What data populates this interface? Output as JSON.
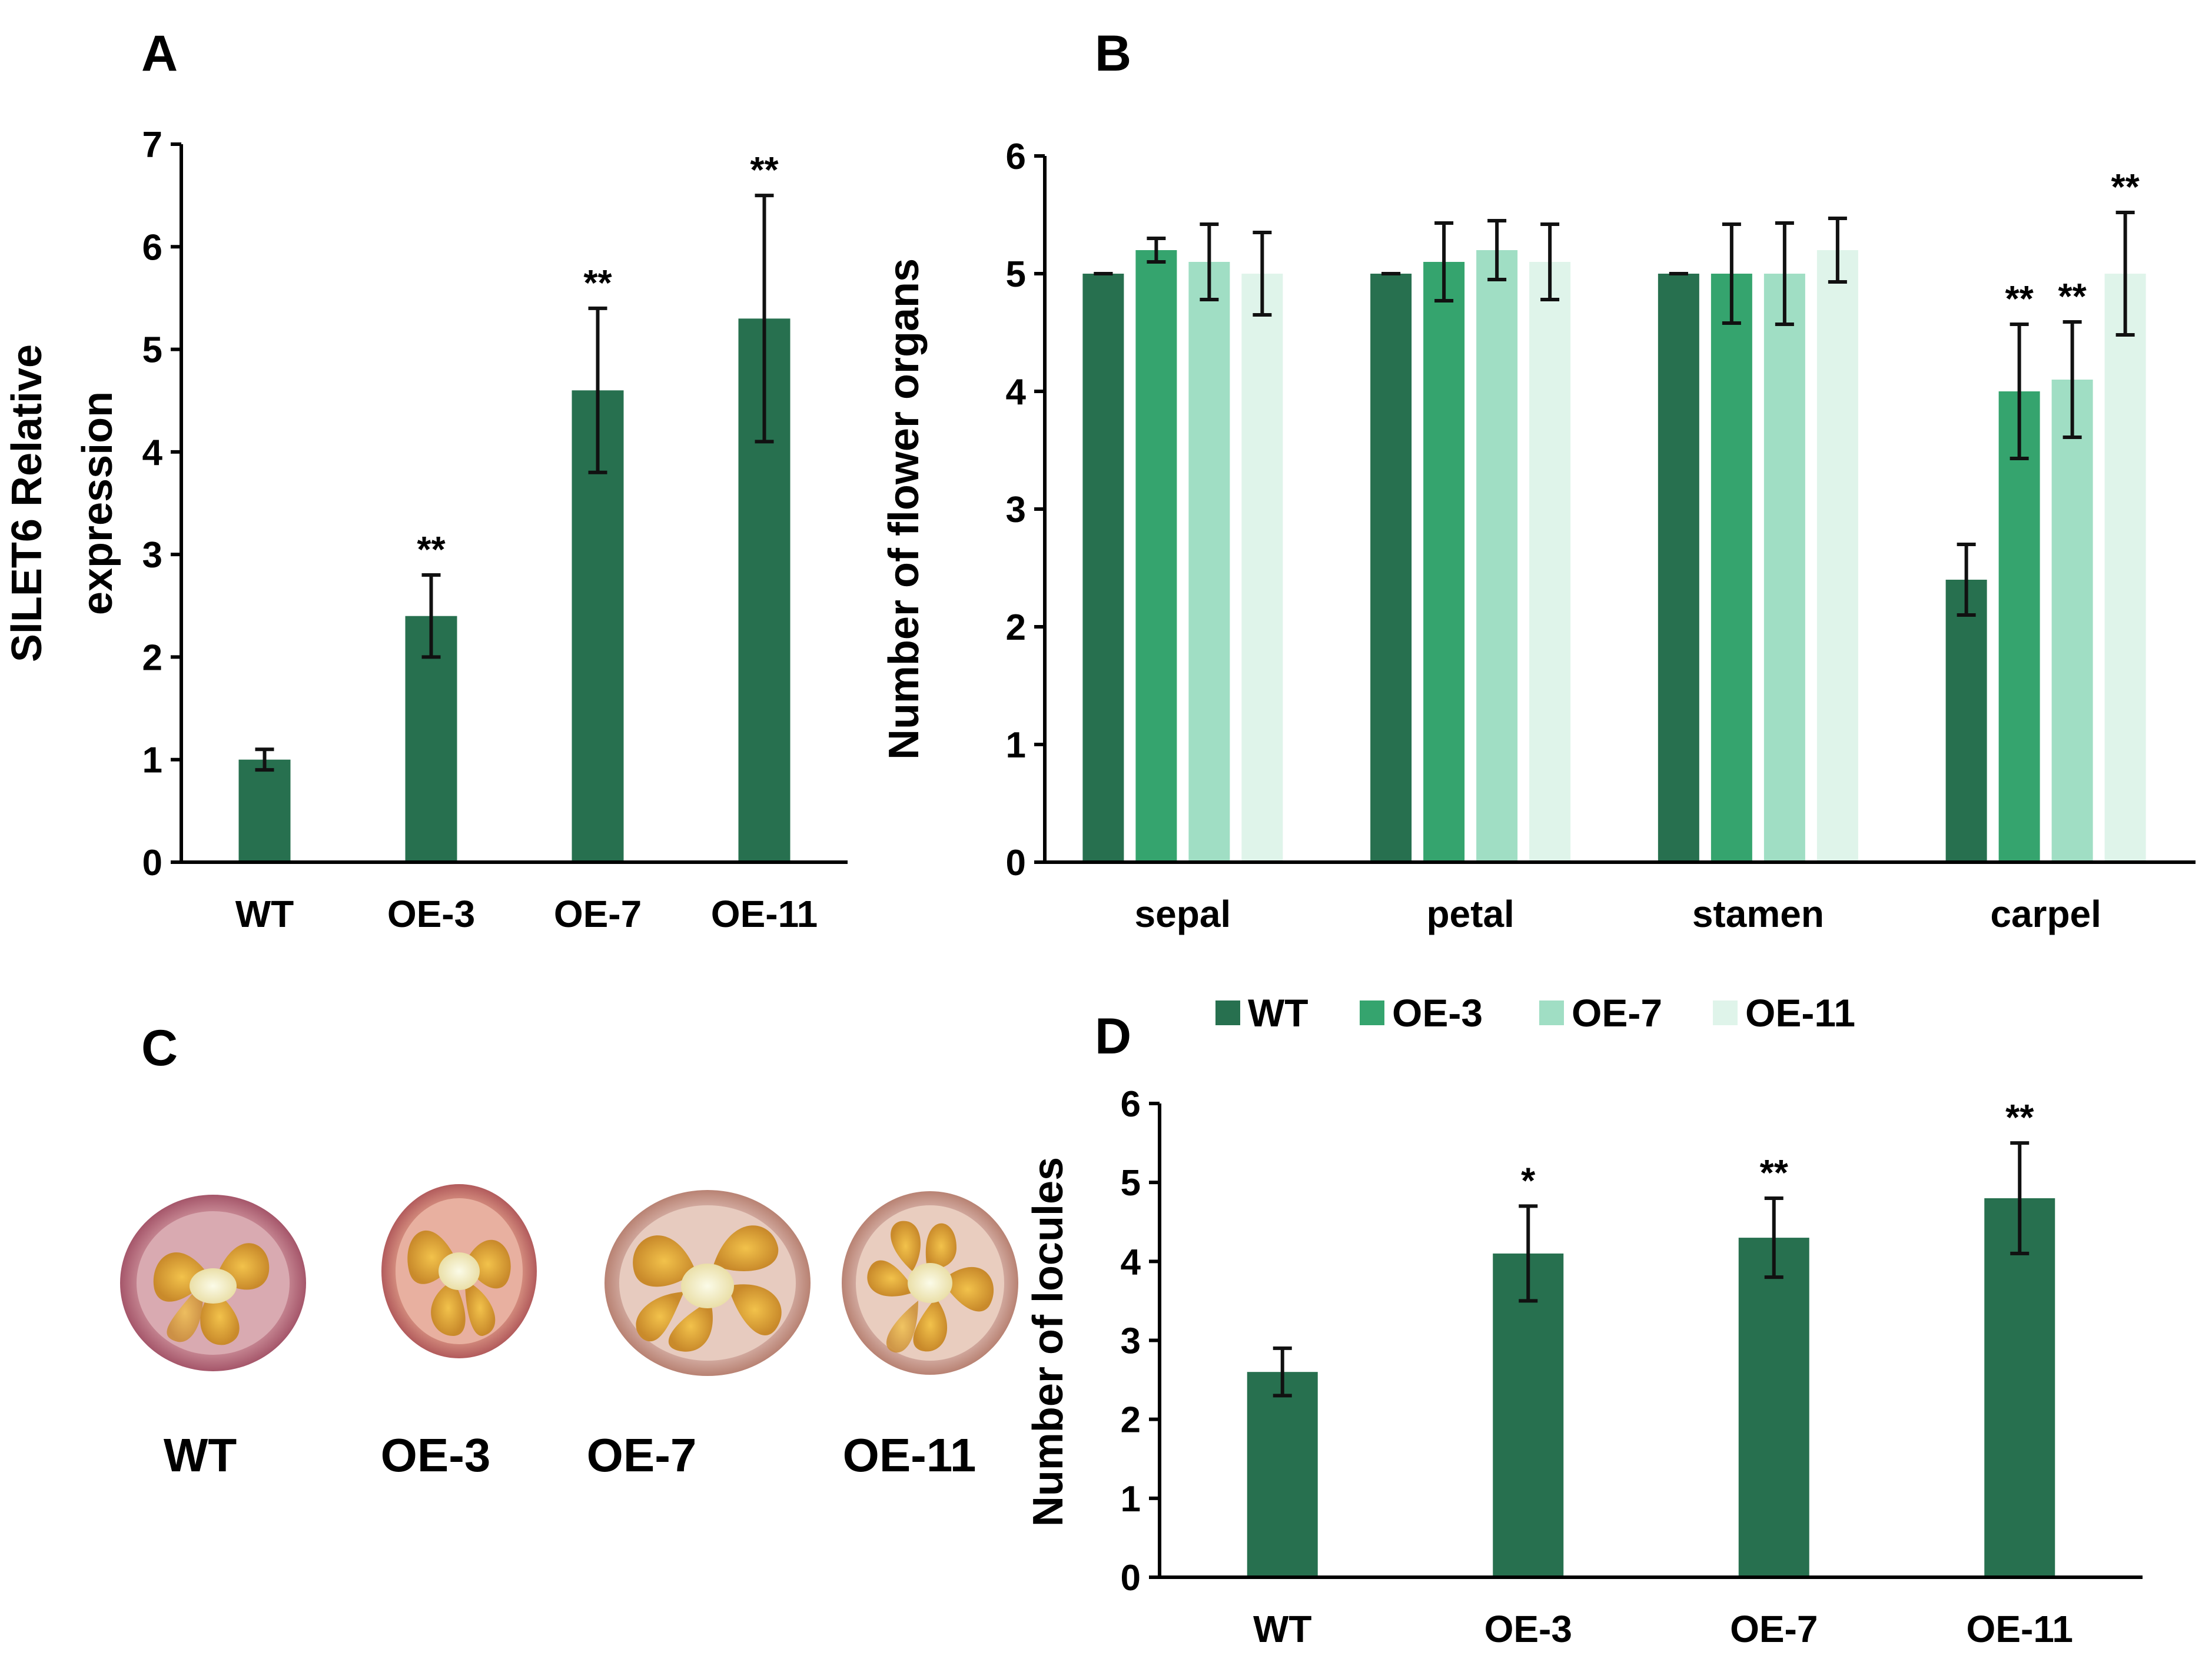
{
  "chart_data": [
    {
      "panel": "A",
      "type": "bar",
      "categories": [
        "WT",
        "OE-3",
        "OE-7",
        "OE-11"
      ],
      "values": [
        1.0,
        2.4,
        4.6,
        5.3
      ],
      "errors": [
        0.1,
        0.4,
        0.8,
        1.2
      ],
      "significance": [
        "",
        "**",
        "**",
        "**"
      ],
      "ylabel_lines": [
        "SlLET6 Relative",
        "expression"
      ],
      "ylim": [
        0,
        7
      ],
      "yticks": [
        "0",
        "1",
        "2",
        "3",
        "4",
        "5",
        "6",
        "7"
      ],
      "color": "#27704f"
    },
    {
      "panel": "B",
      "type": "bar",
      "categories": [
        "sepal",
        "petal",
        "stamen",
        "carpel"
      ],
      "series": [
        {
          "name": "WT",
          "color": "#27704f",
          "values": [
            5.0,
            5.0,
            5.0,
            2.4
          ],
          "errors": [
            0.0,
            0.0,
            0.0,
            0.3
          ],
          "significance": [
            "",
            "",
            "",
            ""
          ]
        },
        {
          "name": "OE-3",
          "color": "#35a46e",
          "values": [
            5.2,
            5.1,
            5.0,
            4.0
          ],
          "errors": [
            0.1,
            0.33,
            0.42,
            0.57
          ],
          "significance": [
            "",
            "",
            "",
            "**"
          ]
        },
        {
          "name": "OE-7",
          "color": "#a0dec4",
          "values": [
            5.1,
            5.2,
            5.0,
            4.1
          ],
          "errors": [
            0.32,
            0.25,
            0.43,
            0.49
          ],
          "significance": [
            "",
            "",
            "",
            "**"
          ]
        },
        {
          "name": "OE-11",
          "color": "#dff4ea",
          "values": [
            5.0,
            5.1,
            5.2,
            5.0
          ],
          "errors": [
            0.35,
            0.32,
            0.27,
            0.52
          ],
          "significance": [
            "",
            "",
            "",
            "**"
          ]
        }
      ],
      "ylabel": "Number of flower organs",
      "ylim": [
        0,
        6
      ],
      "yticks": [
        "0",
        "1",
        "2",
        "3",
        "4",
        "5",
        "6"
      ],
      "legend_position": "bottom"
    },
    {
      "panel": "D",
      "type": "bar",
      "categories": [
        "WT",
        "OE-3",
        "OE-7",
        "OE-11"
      ],
      "values": [
        2.6,
        4.1,
        4.3,
        4.8
      ],
      "errors": [
        0.3,
        0.6,
        0.5,
        0.7
      ],
      "significance": [
        "",
        "*",
        "**",
        "**"
      ],
      "ylabel": "Number of locules",
      "ylim": [
        0,
        6
      ],
      "yticks": [
        "0",
        "1",
        "2",
        "3",
        "4",
        "5",
        "6"
      ],
      "color": "#27704f"
    }
  ],
  "panels": {
    "a": "A",
    "b": "B",
    "c": "C",
    "d": "D"
  },
  "photo_labels": [
    "WT",
    "OE-3",
    "OE-7",
    "OE-11"
  ],
  "legend": [
    {
      "label": "WT",
      "color": "#27704f"
    },
    {
      "label": "OE-3",
      "color": "#35a46e"
    },
    {
      "label": "OE-7",
      "color": "#a0dec4"
    },
    {
      "label": "OE-11",
      "color": "#dff4ea"
    }
  ]
}
